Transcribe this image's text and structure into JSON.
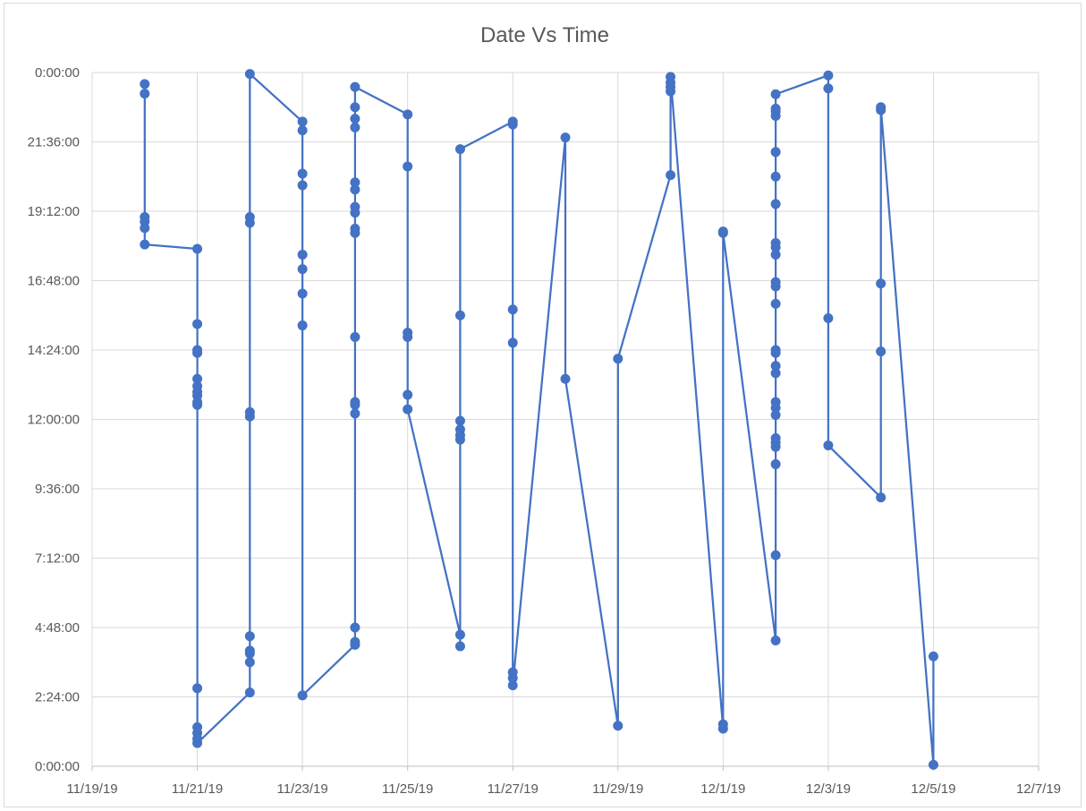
{
  "chart_data": {
    "type": "line",
    "title": "Date Vs Time",
    "xlabel": "",
    "ylabel": "",
    "x_unit": "days since 11/19/19",
    "x_tick_labels": [
      "11/19/19",
      "11/21/19",
      "11/23/19",
      "11/25/19",
      "11/27/19",
      "11/29/19",
      "12/1/19",
      "12/3/19",
      "12/5/19",
      "12/7/19"
    ],
    "x_ticks": [
      0,
      2,
      4,
      6,
      8,
      10,
      12,
      14,
      16,
      18
    ],
    "xlim": [
      0,
      18
    ],
    "y_unit": "hours",
    "y_tick_labels": [
      "0:00:00",
      "2:24:00",
      "4:48:00",
      "7:12:00",
      "9:36:00",
      "12:00:00",
      "14:24:00",
      "16:48:00",
      "19:12:00",
      "21:36:00",
      "0:00:00"
    ],
    "y_ticks": [
      0,
      2.4,
      4.8,
      7.2,
      9.6,
      12,
      14.4,
      16.8,
      19.2,
      21.6,
      24
    ],
    "ylim": [
      0,
      24
    ],
    "grid": true,
    "legend": "none",
    "series_color": "#4472C4",
    "points": [
      [
        1,
        23.6
      ],
      [
        1,
        23.27
      ],
      [
        1,
        19.0
      ],
      [
        1,
        18.84
      ],
      [
        1,
        18.62
      ],
      [
        1,
        18.05
      ],
      [
        2,
        17.9
      ],
      [
        2,
        15.3
      ],
      [
        2,
        14.4
      ],
      [
        2,
        14.3
      ],
      [
        2,
        13.4
      ],
      [
        2,
        13.15
      ],
      [
        2,
        12.95
      ],
      [
        2,
        12.82
      ],
      [
        2,
        12.6
      ],
      [
        2,
        12.5
      ],
      [
        2,
        2.7
      ],
      [
        2,
        1.35
      ],
      [
        2,
        1.15
      ],
      [
        2,
        0.95
      ],
      [
        2,
        0.8
      ],
      [
        3,
        2.55
      ],
      [
        3,
        3.6
      ],
      [
        3,
        3.9
      ],
      [
        3,
        4.0
      ],
      [
        3,
        4.5
      ],
      [
        3,
        12.1
      ],
      [
        3,
        12.25
      ],
      [
        3,
        18.8
      ],
      [
        3,
        19.0
      ],
      [
        3,
        23.95
      ],
      [
        4,
        22.3
      ],
      [
        4,
        22.0
      ],
      [
        4,
        20.5
      ],
      [
        4,
        20.1
      ],
      [
        4,
        17.7
      ],
      [
        4,
        17.2
      ],
      [
        4,
        16.35
      ],
      [
        4,
        15.25
      ],
      [
        4,
        2.45
      ],
      [
        5,
        4.2
      ],
      [
        5,
        4.3
      ],
      [
        5,
        4.8
      ],
      [
        5,
        12.2
      ],
      [
        5,
        12.5
      ],
      [
        5,
        12.6
      ],
      [
        5,
        14.85
      ],
      [
        5,
        18.45
      ],
      [
        5,
        18.6
      ],
      [
        5,
        19.15
      ],
      [
        5,
        19.35
      ],
      [
        5,
        19.95
      ],
      [
        5,
        20.2
      ],
      [
        5,
        22.1
      ],
      [
        5,
        22.4
      ],
      [
        5,
        22.8
      ],
      [
        5,
        23.5
      ],
      [
        6,
        22.55
      ],
      [
        6,
        20.75
      ],
      [
        6,
        15.0
      ],
      [
        6,
        14.85
      ],
      [
        6,
        12.85
      ],
      [
        6,
        12.35
      ],
      [
        7,
        4.55
      ],
      [
        7,
        4.15
      ],
      [
        7,
        11.3
      ],
      [
        7,
        11.45
      ],
      [
        7,
        11.65
      ],
      [
        7,
        11.95
      ],
      [
        7,
        15.6
      ],
      [
        7,
        21.35
      ],
      [
        8,
        22.3
      ],
      [
        8,
        22.2
      ],
      [
        8,
        15.8
      ],
      [
        8,
        14.65
      ],
      [
        8,
        3.25
      ],
      [
        8,
        3.05
      ],
      [
        8,
        2.8
      ],
      [
        9,
        21.75
      ],
      [
        9,
        13.4
      ],
      [
        10,
        1.4
      ],
      [
        10,
        14.1
      ],
      [
        11,
        20.45
      ],
      [
        11,
        23.35
      ],
      [
        11,
        23.5
      ],
      [
        11,
        23.65
      ],
      [
        11,
        23.85
      ],
      [
        12,
        1.3
      ],
      [
        12,
        1.45
      ],
      [
        12,
        18.5
      ],
      [
        12,
        18.45
      ],
      [
        13,
        4.35
      ],
      [
        13,
        7.3
      ],
      [
        13,
        10.45
      ],
      [
        13,
        11.05
      ],
      [
        13,
        11.2
      ],
      [
        13,
        11.35
      ],
      [
        13,
        12.15
      ],
      [
        13,
        12.4
      ],
      [
        13,
        12.6
      ],
      [
        13,
        13.6
      ],
      [
        13,
        13.85
      ],
      [
        13,
        14.3
      ],
      [
        13,
        14.4
      ],
      [
        13,
        16.0
      ],
      [
        13,
        16.6
      ],
      [
        13,
        16.75
      ],
      [
        13,
        17.7
      ],
      [
        13,
        17.95
      ],
      [
        13,
        18.1
      ],
      [
        13,
        19.45
      ],
      [
        13,
        20.4
      ],
      [
        13,
        21.25
      ],
      [
        13,
        22.5
      ],
      [
        13,
        22.65
      ],
      [
        13,
        22.75
      ],
      [
        13,
        23.25
      ],
      [
        14,
        23.9
      ],
      [
        14,
        23.45
      ],
      [
        14,
        15.5
      ],
      [
        14,
        11.1
      ],
      [
        15,
        9.3
      ],
      [
        15,
        14.35
      ],
      [
        15,
        16.7
      ],
      [
        15,
        22.7
      ],
      [
        15,
        22.8
      ],
      [
        16,
        0.05
      ],
      [
        16,
        3.8
      ]
    ]
  }
}
